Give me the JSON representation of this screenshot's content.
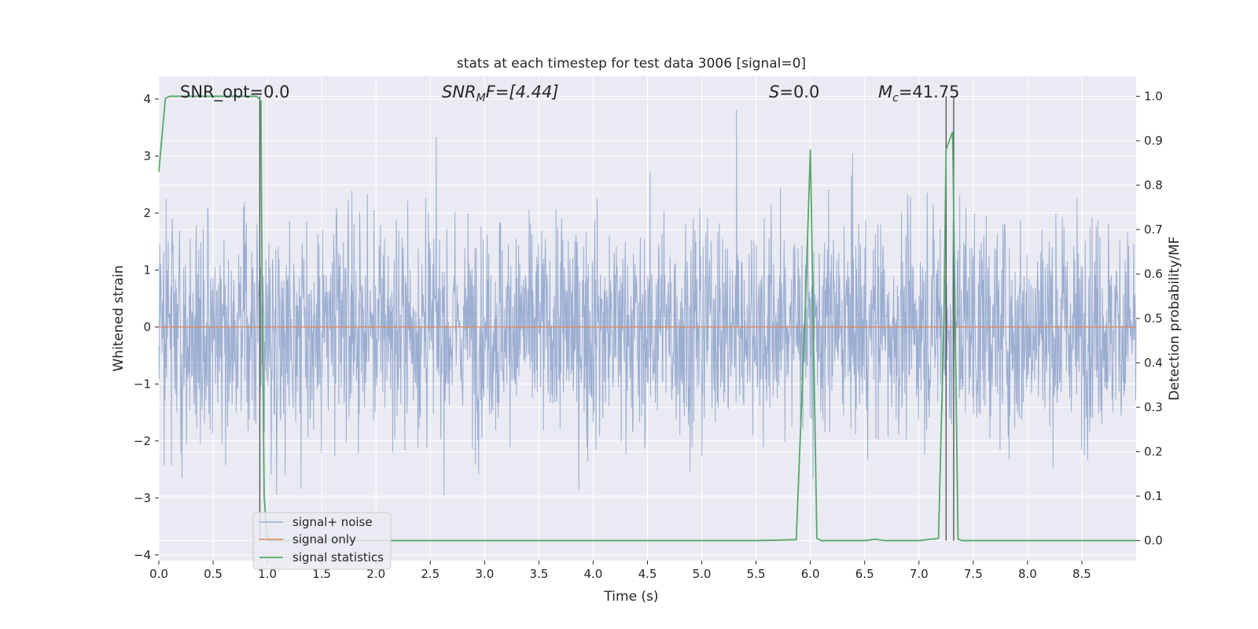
{
  "chart_data": {
    "type": "line",
    "title": "stats at each timestep for test data 3006 [signal=0]",
    "xlabel": "Time (s)",
    "ylabel_left": "Whitened strain",
    "ylabel_right": "Detection probability/MF",
    "xlim": [
      0.0,
      9.0
    ],
    "ylim_left": [
      -4.1,
      4.4
    ],
    "ylim_right": [
      -0.045,
      1.045
    ],
    "x_ticks": [
      "0.0",
      "0.5",
      "1.0",
      "1.5",
      "2.0",
      "2.5",
      "3.0",
      "3.5",
      "4.0",
      "4.5",
      "5.0",
      "5.5",
      "6.0",
      "6.5",
      "7.0",
      "7.5",
      "8.0",
      "8.5"
    ],
    "y_left_ticks": [
      "4",
      "3",
      "2",
      "1",
      "0",
      "−1",
      "−2",
      "−3",
      "−4"
    ],
    "y_right_ticks": [
      "1.0",
      "0.9",
      "0.8",
      "0.7",
      "0.6",
      "0.5",
      "0.4",
      "0.3",
      "0.2",
      "0.1",
      "0.0"
    ],
    "grid": true,
    "annotations": {
      "snr_opt": "SNR_opt=0.0",
      "snr_mf_main": "SNR",
      "snr_mf_sub": "M",
      "snr_mf_rest": "F=[4.44]",
      "s_label": "S",
      "s_rest": "=0.0",
      "mc_main": "M",
      "mc_sub": "c",
      "mc_rest": "=41.75"
    },
    "legend": {
      "placement": "lower-left",
      "entries": [
        "signal+ noise",
        "signal only",
        "signal statistics"
      ]
    },
    "series": [
      {
        "name": "signal+ noise",
        "color": "#4c72b0",
        "description_values": "noise band approx -2.5 to 2.7 with spikes up to 4.0 and down to -3.7"
      },
      {
        "name": "signal only",
        "color": "#dd8452",
        "values_flat": 0.0
      },
      {
        "name": "signal statistics",
        "color": "#55a868",
        "x": [
          0.0,
          0.06,
          0.1,
          0.2,
          0.5,
          0.8,
          0.9,
          0.94,
          0.95,
          0.97,
          1.0,
          1.2,
          2.0,
          3.0,
          4.0,
          5.0,
          5.5,
          5.87,
          5.95,
          6.0,
          6.06,
          6.1,
          6.2,
          6.5,
          6.6,
          6.65,
          6.7,
          7.0,
          7.18,
          7.23,
          7.25,
          7.31,
          7.36,
          7.4,
          8.0,
          9.0
        ],
        "y": [
          0.83,
          0.995,
          1.0,
          1.0,
          1.0,
          1.0,
          1.0,
          0.99,
          0.6,
          0.1,
          0.0,
          0.0,
          0.0,
          0.0,
          0.0,
          0.0,
          0.0,
          0.002,
          0.5,
          0.88,
          0.005,
          0.0,
          0.0,
          0.0,
          0.003,
          0.001,
          0.0,
          0.0,
          0.005,
          0.5,
          0.88,
          0.92,
          0.003,
          0.0,
          0.0,
          0.0
        ]
      },
      {
        "name": "markers",
        "color": "#4d4d4d",
        "x": [
          0.93,
          7.25,
          7.32
        ]
      }
    ]
  }
}
